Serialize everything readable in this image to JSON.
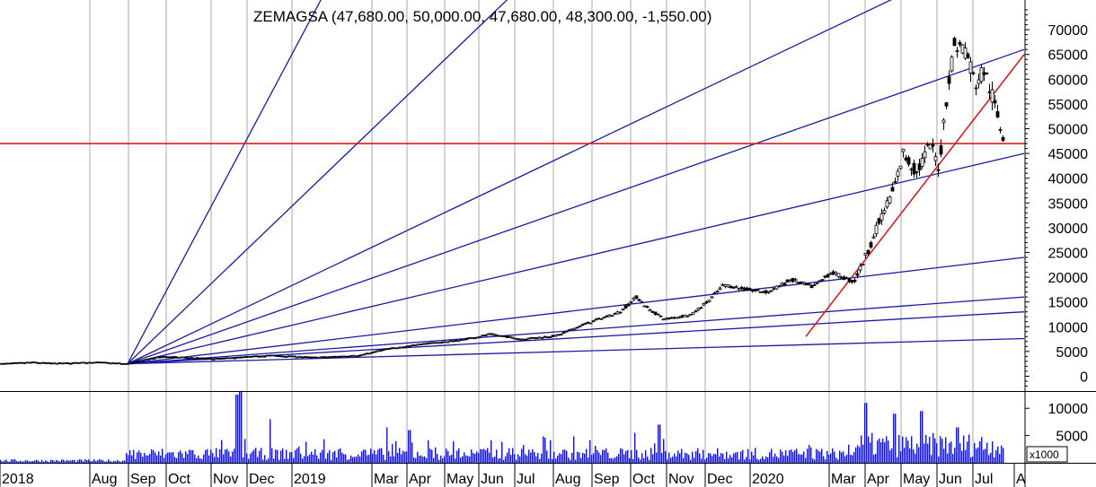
{
  "chart_data": {
    "type": "candlestick",
    "title": "ZEMAGSA (47,680.00, 50,000.00, 47,680.00, 48,300.00, -1,550.00)",
    "price_panel": {
      "ylim": [
        -3000,
        76000
      ],
      "yticks": [
        0,
        5000,
        10000,
        15000,
        20000,
        25000,
        30000,
        35000,
        40000,
        45000,
        50000,
        55000,
        60000,
        65000,
        70000
      ],
      "ytick_labels": [
        "0",
        "5000",
        "10000",
        "15000",
        "20000",
        "25000",
        "30000",
        "35000",
        "40000",
        "45000",
        "50000",
        "55000",
        "60000",
        "65000",
        "70000"
      ],
      "price_path": [
        {
          "t": 0,
          "v": 2500
        },
        {
          "t": 35,
          "v": 2800
        },
        {
          "t": 60,
          "v": 2600
        },
        {
          "t": 110,
          "v": 2800
        },
        {
          "t": 142,
          "v": 2500
        },
        {
          "t": 180,
          "v": 4000
        },
        {
          "t": 240,
          "v": 3500
        },
        {
          "t": 300,
          "v": 4200
        },
        {
          "t": 350,
          "v": 3800
        },
        {
          "t": 400,
          "v": 4200
        },
        {
          "t": 430,
          "v": 5500
        },
        {
          "t": 470,
          "v": 6500
        },
        {
          "t": 510,
          "v": 7200
        },
        {
          "t": 545,
          "v": 8500
        },
        {
          "t": 580,
          "v": 7500
        },
        {
          "t": 620,
          "v": 8200
        },
        {
          "t": 650,
          "v": 10500
        },
        {
          "t": 690,
          "v": 13000
        },
        {
          "t": 708,
          "v": 16000
        },
        {
          "t": 722,
          "v": 13500
        },
        {
          "t": 740,
          "v": 11500
        },
        {
          "t": 770,
          "v": 12500
        },
        {
          "t": 790,
          "v": 15500
        },
        {
          "t": 805,
          "v": 18500
        },
        {
          "t": 830,
          "v": 17500
        },
        {
          "t": 855,
          "v": 17000
        },
        {
          "t": 880,
          "v": 19500
        },
        {
          "t": 905,
          "v": 18000
        },
        {
          "t": 925,
          "v": 21000
        },
        {
          "t": 950,
          "v": 19000
        },
        {
          "t": 965,
          "v": 25000
        },
        {
          "t": 980,
          "v": 32000
        },
        {
          "t": 995,
          "v": 38000
        },
        {
          "t": 1005,
          "v": 45000
        },
        {
          "t": 1020,
          "v": 41000
        },
        {
          "t": 1035,
          "v": 47000
        },
        {
          "t": 1045,
          "v": 42000
        },
        {
          "t": 1052,
          "v": 55000
        },
        {
          "t": 1062,
          "v": 67000
        },
        {
          "t": 1075,
          "v": 66000
        },
        {
          "t": 1085,
          "v": 59000
        },
        {
          "t": 1095,
          "v": 62000
        },
        {
          "t": 1105,
          "v": 56000
        },
        {
          "t": 1112,
          "v": 51000
        },
        {
          "t": 1117,
          "v": 48300
        }
      ],
      "horizontal_line": 47000,
      "gann_fan": {
        "origin": {
          "t": 142,
          "v": 2500
        },
        "target_points": [
          {
            "t": 360,
            "v": 77000
          },
          {
            "t": 570,
            "v": 77000
          },
          {
            "t": 1003,
            "v": 77000
          },
          {
            "t": 1140,
            "v": 66000
          },
          {
            "t": 1140,
            "v": 45000
          },
          {
            "t": 1140,
            "v": 24000
          },
          {
            "t": 1140,
            "v": 16000
          },
          {
            "t": 1140,
            "v": 13000
          },
          {
            "t": 1140,
            "v": 7600
          }
        ]
      },
      "trendline": {
        "start": {
          "t": 897,
          "v": 8000
        },
        "end": {
          "t": 1140,
          "v": 65000
        }
      }
    },
    "volume_panel": {
      "unit_label": "x1000",
      "ylim": [
        0,
        13000
      ],
      "yticks": [
        5000,
        10000
      ],
      "ytick_labels": [
        "5000",
        "10000"
      ],
      "spikes": [
        {
          "t": 263,
          "v": 12500
        },
        {
          "t": 267,
          "v": 13000
        },
        {
          "t": 300,
          "v": 8000
        },
        {
          "t": 430,
          "v": 6500
        },
        {
          "t": 455,
          "v": 6000
        },
        {
          "t": 706,
          "v": 5500
        },
        {
          "t": 733,
          "v": 7000
        },
        {
          "t": 963,
          "v": 11000
        },
        {
          "t": 995,
          "v": 9000
        },
        {
          "t": 1025,
          "v": 9500
        },
        {
          "t": 1065,
          "v": 6500
        }
      ]
    },
    "x_axis": {
      "labels": [
        {
          "t": 2,
          "text": "2018"
        },
        {
          "t": 102,
          "text": "Aug"
        },
        {
          "t": 145,
          "text": "Sep"
        },
        {
          "t": 187,
          "text": "Oct"
        },
        {
          "t": 237,
          "text": "Nov"
        },
        {
          "t": 277,
          "text": "Dec"
        },
        {
          "t": 327,
          "text": "2019"
        },
        {
          "t": 416,
          "text": "Mar"
        },
        {
          "t": 455,
          "text": "Apr"
        },
        {
          "t": 497,
          "text": "May"
        },
        {
          "t": 535,
          "text": "Jun"
        },
        {
          "t": 575,
          "text": "Jul"
        },
        {
          "t": 618,
          "text": "Aug"
        },
        {
          "t": 661,
          "text": "Sep"
        },
        {
          "t": 704,
          "text": "Oct"
        },
        {
          "t": 744,
          "text": "Nov"
        },
        {
          "t": 787,
          "text": "Dec"
        },
        {
          "t": 837,
          "text": "2020"
        },
        {
          "t": 925,
          "text": "Mar"
        },
        {
          "t": 965,
          "text": "Apr"
        },
        {
          "t": 1005,
          "text": "May"
        },
        {
          "t": 1045,
          "text": "Jun"
        },
        {
          "t": 1085,
          "text": "Jul"
        },
        {
          "t": 1131,
          "text": "A"
        }
      ]
    },
    "grid": true,
    "colors": {
      "gridline": "#aaaaaa",
      "fan_line": "#1a1aa0",
      "horizontal_line": "#d42020",
      "trendline": "#d42020",
      "volume": "#1414c8",
      "price": "#000000"
    }
  }
}
